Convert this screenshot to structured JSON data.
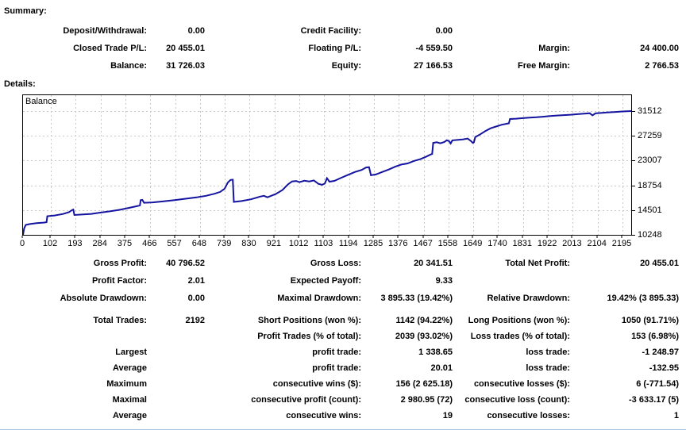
{
  "summary": {
    "heading": "Summary:",
    "rows": [
      {
        "c1l": "Deposit/Withdrawal:",
        "c1v": "0.00",
        "c2l": "Credit Facility:",
        "c2v": "0.00",
        "c3l": "",
        "c3v": ""
      },
      {
        "c1l": "Closed Trade P/L:",
        "c1v": "20 455.01",
        "c2l": "Floating P/L:",
        "c2v": "-4 559.50",
        "c3l": "Margin:",
        "c3v": "24 400.00"
      },
      {
        "c1l": "Balance:",
        "c1v": "31 726.03",
        "c2l": "Equity:",
        "c2v": "27 166.53",
        "c3l": "Free Margin:",
        "c3v": "2 766.53"
      }
    ]
  },
  "details": {
    "heading": "Details:",
    "groups": [
      [
        {
          "c1l": "Gross Profit:",
          "c1v": "40 796.52",
          "c2l": "Gross Loss:",
          "c2v": "20 341.51",
          "c3l": "Total Net Profit:",
          "c3v": "20 455.01"
        },
        {
          "c1l": "Profit Factor:",
          "c1v": "2.01",
          "c2l": "Expected Payoff:",
          "c2v": "9.33",
          "c3l": "",
          "c3v": ""
        },
        {
          "c1l": "Absolute Drawdown:",
          "c1v": "0.00",
          "c2l": "Maximal Drawdown:",
          "c2v": "3 895.33 (19.42%)",
          "c3l": "Relative Drawdown:",
          "c3v": "19.42% (3 895.33)"
        }
      ],
      [
        {
          "c1l": "Total Trades:",
          "c1v": "2192",
          "c2l": "Short Positions (won %):",
          "c2v": "1142 (94.22%)",
          "c3l": "Long Positions (won %):",
          "c3v": "1050 (91.71%)"
        },
        {
          "c1l": "",
          "c1v": "",
          "c2l": "Profit Trades (% of total):",
          "c2v": "2039 (93.02%)",
          "c3l": "Loss trades (% of total):",
          "c3v": "153 (6.98%)"
        },
        {
          "c1l": "Largest",
          "c1v": "",
          "c2l": "profit trade:",
          "c2v": "1 338.65",
          "c3l": "loss trade:",
          "c3v": "-1 248.97"
        },
        {
          "c1l": "Average",
          "c1v": "",
          "c2l": "profit trade:",
          "c2v": "20.01",
          "c3l": "loss trade:",
          "c3v": "-132.95"
        },
        {
          "c1l": "Maximum",
          "c1v": "",
          "c2l": "consecutive wins ($):",
          "c2v": "156 (2 625.18)",
          "c3l": "consecutive losses ($):",
          "c3v": "6 (-771.54)"
        },
        {
          "c1l": "Maximal",
          "c1v": "",
          "c2l": "consecutive profit (count):",
          "c2v": "2 980.95 (72)",
          "c3l": "consecutive loss (count):",
          "c3v": "-3 633.17 (5)"
        },
        {
          "c1l": "Average",
          "c1v": "",
          "c2l": "consecutive wins:",
          "c2v": "19",
          "c3l": "consecutive losses:",
          "c3v": "1"
        }
      ]
    ]
  },
  "chart_data": {
    "type": "line",
    "title": "Balance",
    "xlabel": "",
    "ylabel": "",
    "grid": true,
    "line_color": "#1414a0",
    "grid_color": "#c8c8c8",
    "x_ticks": [
      0,
      102,
      193,
      284,
      375,
      466,
      557,
      648,
      739,
      830,
      921,
      1012,
      1103,
      1194,
      1285,
      1376,
      1467,
      1558,
      1649,
      1740,
      1831,
      1922,
      2013,
      2104,
      2195
    ],
    "y_ticks": [
      10248,
      14501,
      18754,
      23007,
      27259,
      31512
    ],
    "xlim": [
      0,
      2227
    ],
    "ylim": [
      10248,
      34240
    ],
    "points": [
      [
        0,
        10248
      ],
      [
        4,
        11350
      ],
      [
        10,
        11950
      ],
      [
        25,
        12100
      ],
      [
        50,
        12250
      ],
      [
        75,
        12350
      ],
      [
        86,
        12420
      ],
      [
        89,
        13450
      ],
      [
        115,
        13580
      ],
      [
        145,
        13820
      ],
      [
        168,
        14150
      ],
      [
        180,
        14520
      ],
      [
        184,
        14600
      ],
      [
        188,
        13660
      ],
      [
        215,
        13740
      ],
      [
        250,
        13850
      ],
      [
        285,
        14080
      ],
      [
        320,
        14300
      ],
      [
        355,
        14560
      ],
      [
        390,
        14900
      ],
      [
        415,
        15150
      ],
      [
        428,
        15300
      ],
      [
        431,
        16200
      ],
      [
        437,
        16250
      ],
      [
        443,
        15750
      ],
      [
        475,
        15820
      ],
      [
        515,
        16020
      ],
      [
        555,
        16220
      ],
      [
        595,
        16450
      ],
      [
        635,
        16680
      ],
      [
        670,
        16950
      ],
      [
        700,
        17300
      ],
      [
        722,
        17620
      ],
      [
        738,
        18150
      ],
      [
        750,
        19250
      ],
      [
        760,
        19680
      ],
      [
        768,
        19720
      ],
      [
        772,
        15900
      ],
      [
        800,
        16060
      ],
      [
        835,
        16360
      ],
      [
        868,
        16820
      ],
      [
        882,
        16960
      ],
      [
        895,
        16700
      ],
      [
        925,
        17260
      ],
      [
        950,
        17950
      ],
      [
        970,
        18900
      ],
      [
        985,
        19420
      ],
      [
        1000,
        19500
      ],
      [
        1012,
        19300
      ],
      [
        1030,
        19550
      ],
      [
        1048,
        19420
      ],
      [
        1065,
        19600
      ],
      [
        1082,
        19000
      ],
      [
        1095,
        18850
      ],
      [
        1105,
        19050
      ],
      [
        1113,
        19980
      ],
      [
        1122,
        19380
      ],
      [
        1140,
        19520
      ],
      [
        1165,
        20050
      ],
      [
        1190,
        20550
      ],
      [
        1215,
        21050
      ],
      [
        1240,
        21400
      ],
      [
        1256,
        21820
      ],
      [
        1267,
        21880
      ],
      [
        1274,
        20480
      ],
      [
        1292,
        20620
      ],
      [
        1315,
        21050
      ],
      [
        1340,
        21480
      ],
      [
        1362,
        21950
      ],
      [
        1385,
        22320
      ],
      [
        1408,
        22520
      ],
      [
        1432,
        22950
      ],
      [
        1455,
        23250
      ],
      [
        1475,
        23650
      ],
      [
        1492,
        24050
      ],
      [
        1498,
        24150
      ],
      [
        1502,
        26050
      ],
      [
        1515,
        26150
      ],
      [
        1528,
        25980
      ],
      [
        1542,
        26180
      ],
      [
        1552,
        26500
      ],
      [
        1560,
        26350
      ],
      [
        1566,
        25950
      ],
      [
        1572,
        26480
      ],
      [
        1590,
        26550
      ],
      [
        1610,
        26650
      ],
      [
        1628,
        26780
      ],
      [
        1640,
        26380
      ],
      [
        1647,
        26050
      ],
      [
        1651,
        26150
      ],
      [
        1656,
        27050
      ],
      [
        1672,
        27450
      ],
      [
        1692,
        28050
      ],
      [
        1712,
        28550
      ],
      [
        1732,
        28850
      ],
      [
        1752,
        29150
      ],
      [
        1772,
        29350
      ],
      [
        1779,
        29400
      ],
      [
        1783,
        30150
      ],
      [
        1805,
        30200
      ],
      [
        1830,
        30300
      ],
      [
        1855,
        30380
      ],
      [
        1880,
        30450
      ],
      [
        1905,
        30550
      ],
      [
        1930,
        30650
      ],
      [
        1955,
        30750
      ],
      [
        1980,
        30820
      ],
      [
        2005,
        30880
      ],
      [
        2030,
        30980
      ],
      [
        2055,
        31080
      ],
      [
        2075,
        31150
      ],
      [
        2085,
        30780
      ],
      [
        2096,
        31120
      ],
      [
        2120,
        31220
      ],
      [
        2145,
        31300
      ],
      [
        2170,
        31360
      ],
      [
        2195,
        31450
      ],
      [
        2227,
        31520
      ]
    ]
  }
}
